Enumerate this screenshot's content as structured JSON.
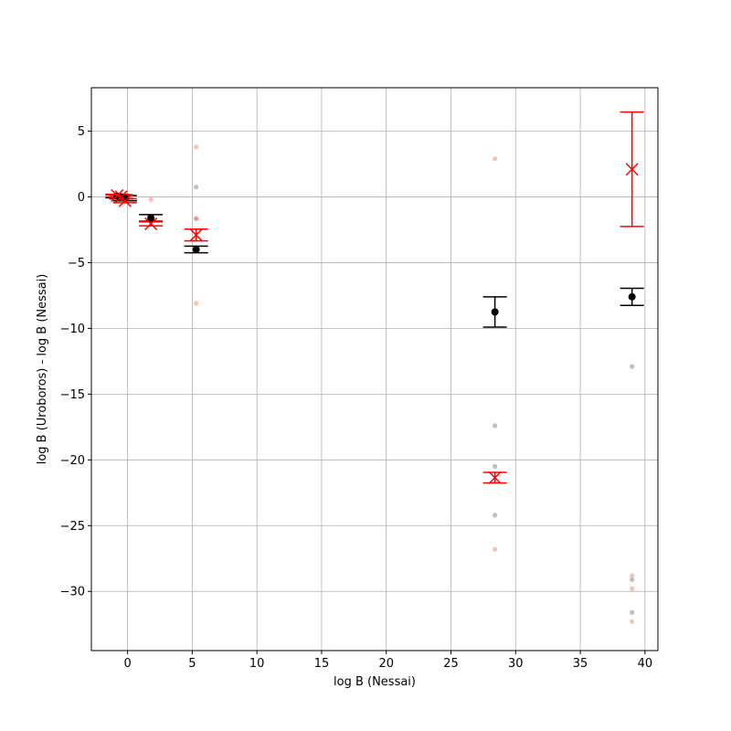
{
  "chart_data": {
    "type": "scatter",
    "title": "",
    "xlabel": "log B (Nessai)",
    "ylabel": "log B (Uroboros) - log B (Nessai)",
    "xlim": [
      -2.8,
      41.0
    ],
    "ylim": [
      -34.5,
      8.3
    ],
    "xticks": [
      0,
      5,
      10,
      15,
      20,
      25,
      30,
      35,
      40
    ],
    "yticks": [
      5,
      0,
      -5,
      -10,
      -15,
      -20,
      -25,
      -30
    ],
    "grid": true,
    "colors": {
      "black": "#000000",
      "red": "#ff0000",
      "gray_point": "#808080",
      "salmon_point": "#fa8072",
      "grid": "#b0b0b0"
    },
    "series": [
      {
        "marker": "circle",
        "color": "#000000",
        "points": [
          {
            "x": -0.8,
            "y": 0.05,
            "err": 0.12
          },
          {
            "x": -0.5,
            "y": 0.0,
            "err": 0.15
          },
          {
            "x": -0.2,
            "y": -0.1,
            "err": 0.2
          },
          {
            "x": 1.8,
            "y": -1.6,
            "err": 0.25
          },
          {
            "x": 5.3,
            "y": -4.0,
            "err": 0.25
          },
          {
            "x": 28.4,
            "y": -8.75,
            "err": 1.15
          },
          {
            "x": 39.0,
            "y": -7.6,
            "err": 0.65
          }
        ]
      },
      {
        "marker": "x",
        "color": "#ff0000",
        "points": [
          {
            "x": -0.8,
            "y": 0.1,
            "err": 0.1
          },
          {
            "x": -0.5,
            "y": 0.0,
            "err": 0.12
          },
          {
            "x": -0.2,
            "y": -0.3,
            "err": 0.15
          },
          {
            "x": 1.8,
            "y": -2.05,
            "err": 0.15
          },
          {
            "x": 5.3,
            "y": -2.9,
            "err": 0.45
          },
          {
            "x": 28.4,
            "y": -21.35,
            "err": 0.4
          },
          {
            "x": 39.0,
            "y": 2.1,
            "err": 4.35
          }
        ]
      }
    ],
    "samples_gray": [
      {
        "x": 5.3,
        "y": 0.75
      },
      {
        "x": 5.3,
        "y": -1.65
      },
      {
        "x": 28.4,
        "y": -17.4
      },
      {
        "x": 28.4,
        "y": -20.5
      },
      {
        "x": 28.4,
        "y": -24.2
      },
      {
        "x": 39.0,
        "y": -12.9
      },
      {
        "x": 39.0,
        "y": -29.1
      },
      {
        "x": 39.0,
        "y": -31.6
      }
    ],
    "samples_salmon": [
      {
        "x": 1.8,
        "y": -0.2
      },
      {
        "x": 5.3,
        "y": 3.8
      },
      {
        "x": 5.3,
        "y": -1.65
      },
      {
        "x": 5.3,
        "y": -8.1
      },
      {
        "x": 28.4,
        "y": 2.9
      },
      {
        "x": 28.4,
        "y": -26.8
      },
      {
        "x": 39.0,
        "y": -28.8
      },
      {
        "x": 39.0,
        "y": -29.8
      },
      {
        "x": 39.0,
        "y": -32.3
      }
    ]
  }
}
